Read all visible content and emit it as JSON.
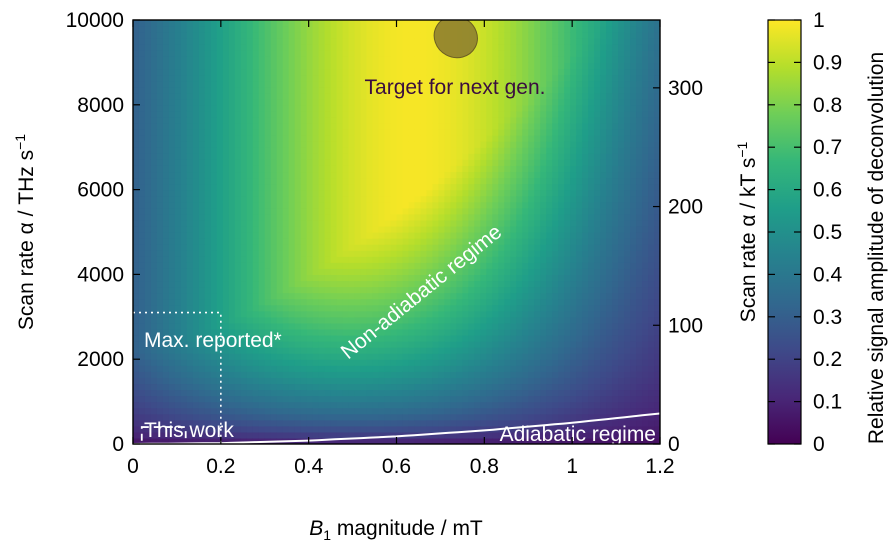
{
  "chart_data": {
    "type": "heatmap",
    "x_axis": {
      "label_var": "B",
      "label_sub": "1",
      "label_rest": " magnitude / mT",
      "range": [
        0,
        1.2
      ],
      "ticks": [
        0,
        0.2,
        0.4,
        0.6,
        0.8,
        1,
        1.2
      ],
      "tick_labels": [
        "0",
        "0.2",
        "0.4",
        "0.6",
        "0.8",
        "1",
        "1.2"
      ]
    },
    "y_axis_left": {
      "label_main": "Scan rate α / THz s",
      "label_sup": "−1",
      "range": [
        0,
        10000
      ],
      "ticks": [
        0,
        2000,
        4000,
        6000,
        8000,
        10000
      ],
      "tick_labels": [
        "0",
        "2000",
        "4000",
        "6000",
        "8000",
        "10000"
      ]
    },
    "y_axis_right": {
      "label_main": "Scan rate α / kT s",
      "label_sup": "−1",
      "ticks_kt": [
        0,
        100,
        200,
        300
      ],
      "tick_labels": [
        "0",
        "100",
        "200",
        "300"
      ],
      "conversion_thz_per_kt": 28.0
    },
    "colorbar": {
      "label": "Relative signal amplitude of deconvolution",
      "range": [
        0,
        1
      ],
      "ticks": [
        0,
        0.1,
        0.2,
        0.3,
        0.4,
        0.5,
        0.6,
        0.7,
        0.8,
        0.9,
        1
      ],
      "tick_labels": [
        "0",
        "0.1",
        "0.2",
        "0.3",
        "0.4",
        "0.5",
        "0.6",
        "0.7",
        "0.8",
        "0.9",
        "1"
      ],
      "colormap": "viridis",
      "stops": [
        "#440154",
        "#482878",
        "#3e4a89",
        "#31688e",
        "#26828e",
        "#1f9e89",
        "#35b779",
        "#6ece58",
        "#b5de2b",
        "#fde725"
      ]
    },
    "adiabatic_boundary": {
      "B1": [
        0,
        0.2,
        0.4,
        0.6,
        0.8,
        1.0,
        1.2
      ],
      "alpha": [
        0,
        20,
        80,
        180,
        320,
        500,
        720
      ]
    },
    "annotations": {
      "target": "Target for next gen.",
      "non_adiabatic": "Non-adiabatic regime",
      "adiabatic": "Adiabatic regime",
      "max_reported": "Max. reported*",
      "this_work": "This work"
    },
    "max_reported_box": {
      "B1": [
        0,
        0.2
      ],
      "alpha": [
        0,
        3100
      ]
    },
    "this_work_box": {
      "B1": [
        0.02,
        0.12
      ],
      "alpha": [
        0,
        400
      ]
    },
    "target_ellipse": {
      "B1_center": 0.735,
      "alpha_center": 9600,
      "B1_halfwidth": 0.05,
      "alpha_halfheight": 480
    }
  }
}
